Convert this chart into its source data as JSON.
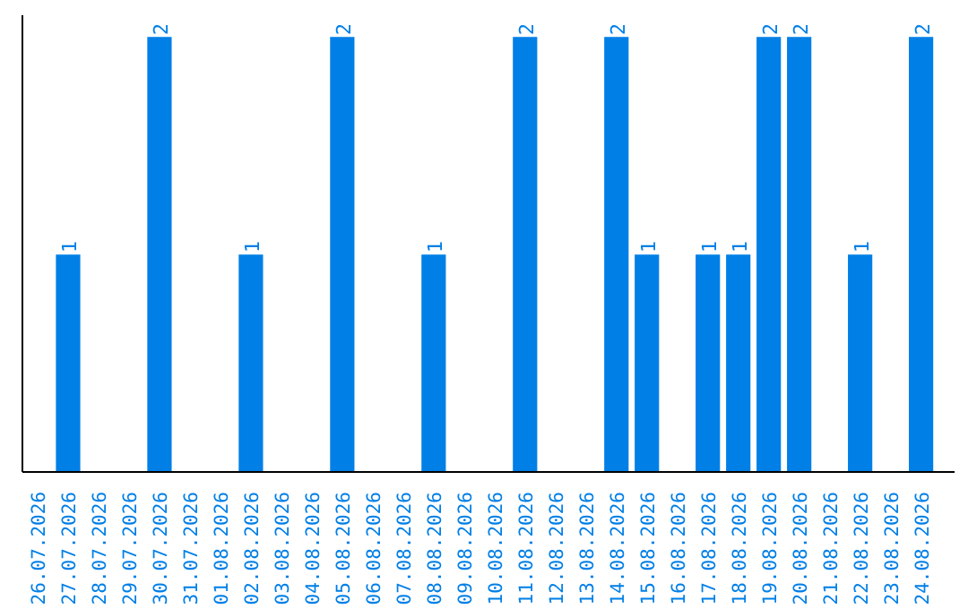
{
  "chart_data": {
    "type": "bar",
    "categories": [
      "26.07.2026",
      "27.07.2026",
      "28.07.2026",
      "29.07.2026",
      "30.07.2026",
      "31.07.2026",
      "01.08.2026",
      "02.08.2026",
      "03.08.2026",
      "04.08.2026",
      "05.08.2026",
      "06.08.2026",
      "07.08.2026",
      "08.08.2026",
      "09.08.2026",
      "10.08.2026",
      "11.08.2026",
      "12.08.2026",
      "13.08.2026",
      "14.08.2026",
      "15.08.2026",
      "16.08.2026",
      "17.08.2026",
      "18.08.2026",
      "19.08.2026",
      "20.08.2026",
      "21.08.2026",
      "22.08.2026",
      "23.08.2026",
      "24.08.2026"
    ],
    "values": [
      0,
      1,
      0,
      0,
      2,
      0,
      0,
      1,
      0,
      0,
      2,
      0,
      0,
      1,
      0,
      0,
      2,
      0,
      0,
      2,
      1,
      0,
      1,
      1,
      2,
      2,
      0,
      1,
      0,
      2
    ],
    "value_labels": [
      null,
      "1",
      null,
      null,
      "2",
      null,
      null,
      "1",
      null,
      null,
      "2",
      null,
      null,
      "1",
      null,
      null,
      "2",
      null,
      null,
      "2",
      "1",
      null,
      "1",
      "1",
      "2",
      "2",
      null,
      "1",
      null,
      "2"
    ],
    "color": "#007fe6",
    "grid": false,
    "tick_labels": "x"
  }
}
